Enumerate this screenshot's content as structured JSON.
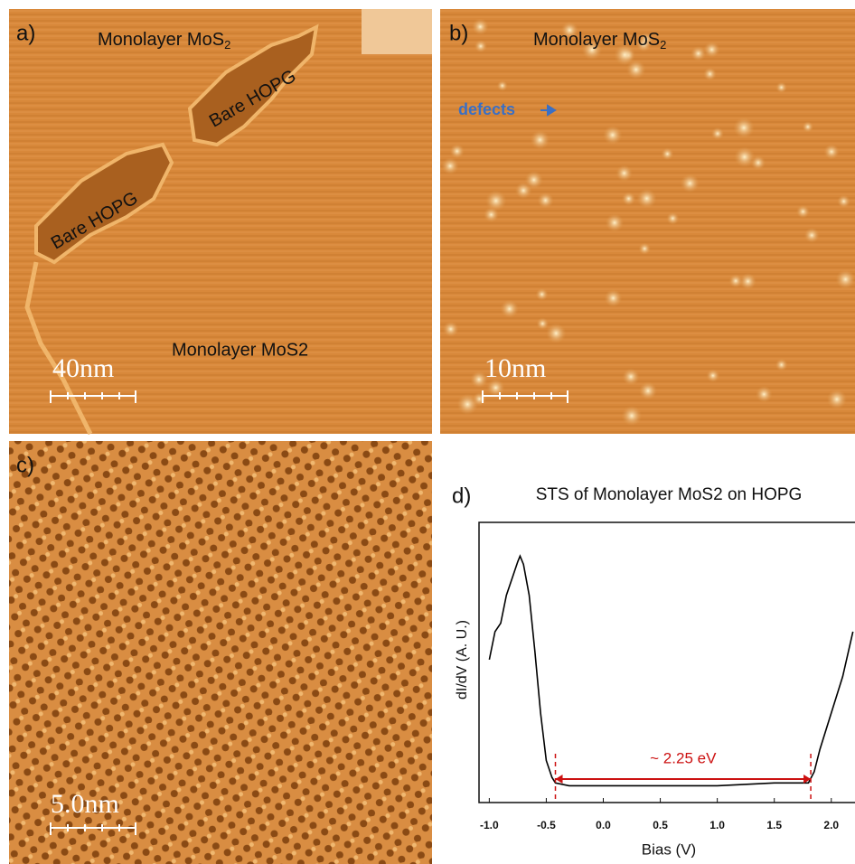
{
  "panels": {
    "a": {
      "label": "a)",
      "top": {
        "text": "Monolayer MoS",
        "subscript": "2"
      },
      "hopg1": "Bare HOPG",
      "hopg2": "Bare HOPG",
      "bottom": "Monolayer MoS2",
      "scale": "40nm"
    },
    "b": {
      "label": "b)",
      "top": {
        "text": "Monolayer MoS",
        "subscript": "2"
      },
      "defects": "defects",
      "scale": "10nm"
    },
    "c": {
      "label": "c)",
      "scale": "5.0nm"
    }
  },
  "chart_data": {
    "type": "line",
    "panel_label": "d)",
    "title": "STS of Monolayer MoS2 on HOPG",
    "x_label": "Bias (V)",
    "y_label": "dI/dV (A. U.)",
    "color": "#000000",
    "x": [
      -1.0,
      -0.95,
      -0.9,
      -0.85,
      -0.8,
      -0.75,
      -0.73,
      -0.7,
      -0.65,
      -0.6,
      -0.55,
      -0.5,
      -0.45,
      -0.42,
      -0.3,
      0.0,
      0.5,
      1.0,
      1.5,
      1.8,
      1.85,
      1.9,
      2.0,
      2.1,
      2.19
    ],
    "values": [
      51,
      61,
      64,
      74,
      80,
      86,
      88,
      85,
      74,
      54,
      32,
      15,
      9,
      7,
      6,
      6,
      6,
      6,
      7,
      7,
      11,
      19,
      32,
      45,
      61
    ],
    "xlim": [
      -1.09,
      2.2
    ],
    "ylim": [
      0,
      100
    ],
    "xticks": [
      {
        "value": -1,
        "label": "-1.0"
      },
      -0.5,
      {
        "value": 0,
        "label": "0.0"
      },
      0.5,
      {
        "value": 1,
        "label": "1.0"
      },
      1.5,
      {
        "value": 2,
        "label": "2.0"
      }
    ],
    "annotation": {
      "text": "~ 2.25 eV",
      "x": [
        -0.42,
        1.82
      ],
      "color": "#cc1111"
    }
  }
}
